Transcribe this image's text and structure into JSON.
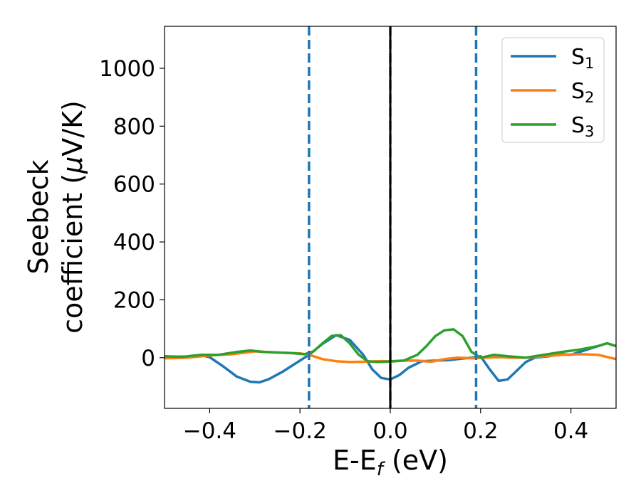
{
  "chart_data": {
    "type": "line",
    "title": "",
    "xlabel": {
      "main": "E-E",
      "sub": "f",
      "tail": " (eV)"
    },
    "ylabel": {
      "line1": "Seebeck",
      "line2": "coefficient  (",
      "mu": "μ",
      "unit": "V/K)"
    },
    "xlim": [
      -0.5,
      0.5
    ],
    "ylim": [
      -175,
      1145
    ],
    "x_ticks": [
      {
        "value": -0.4,
        "label": "−0.4"
      },
      {
        "value": -0.2,
        "label": "−0.2"
      },
      {
        "value": 0.0,
        "label": "0.0"
      },
      {
        "value": 0.2,
        "label": "0.2"
      },
      {
        "value": 0.4,
        "label": "0.4"
      }
    ],
    "y_ticks": [
      {
        "value": 0,
        "label": "0"
      },
      {
        "value": 200,
        "label": "200"
      },
      {
        "value": 400,
        "label": "400"
      },
      {
        "value": 600,
        "label": "600"
      },
      {
        "value": 800,
        "label": "800"
      },
      {
        "value": 1000,
        "label": "1000"
      }
    ],
    "legend_position": "top-right",
    "grid": false,
    "vertical_lines": [
      {
        "x": -0.18,
        "style": "dashed",
        "color": "#1f77b4"
      },
      {
        "x": 0.0,
        "style": "dashed",
        "color": "#1f77b4"
      },
      {
        "x": 0.19,
        "style": "dashed",
        "color": "#1f77b4"
      },
      {
        "x": 0.0,
        "style": "solid",
        "color": "#000000"
      }
    ],
    "series": [
      {
        "name": "S",
        "sub": "1",
        "color": "#1f77b4",
        "x": [
          -0.5,
          -0.45,
          -0.42,
          -0.4,
          -0.37,
          -0.34,
          -0.31,
          -0.29,
          -0.27,
          -0.24,
          -0.21,
          -0.18,
          -0.15,
          -0.12,
          -0.09,
          -0.06,
          -0.04,
          -0.02,
          0.0,
          0.02,
          0.04,
          0.07,
          0.1,
          0.13,
          0.16,
          0.18,
          0.2,
          0.22,
          0.24,
          0.26,
          0.28,
          0.3,
          0.32,
          0.35,
          0.38,
          0.4,
          0.43,
          0.46,
          0.48,
          0.5
        ],
        "y": [
          3,
          4,
          9,
          2,
          -30,
          -65,
          -83,
          -85,
          -75,
          -50,
          -20,
          10,
          48,
          78,
          62,
          10,
          -40,
          -70,
          -75,
          -60,
          -35,
          -12,
          -10,
          -8,
          -3,
          0,
          5,
          -40,
          -80,
          -75,
          -45,
          -15,
          0,
          5,
          12,
          10,
          25,
          40,
          50,
          40
        ]
      },
      {
        "name": "S",
        "sub": "2",
        "color": "#ff7f0e",
        "x": [
          -0.5,
          -0.45,
          -0.4,
          -0.35,
          -0.3,
          -0.25,
          -0.2,
          -0.18,
          -0.15,
          -0.12,
          -0.09,
          -0.06,
          -0.03,
          0.0,
          0.03,
          0.06,
          0.09,
          0.12,
          0.15,
          0.18,
          0.21,
          0.24,
          0.27,
          0.3,
          0.34,
          0.38,
          0.42,
          0.46,
          0.5
        ],
        "y": [
          -2,
          0,
          8,
          12,
          22,
          18,
          15,
          10,
          -5,
          -12,
          -15,
          -14,
          -12,
          -12,
          -10,
          -10,
          -14,
          -5,
          0,
          -2,
          0,
          2,
          0,
          0,
          5,
          10,
          12,
          10,
          -5
        ]
      },
      {
        "name": "S",
        "sub": "3",
        "color": "#2ca02c",
        "x": [
          -0.5,
          -0.46,
          -0.42,
          -0.38,
          -0.34,
          -0.31,
          -0.28,
          -0.25,
          -0.22,
          -0.19,
          -0.17,
          -0.15,
          -0.13,
          -0.11,
          -0.09,
          -0.07,
          -0.05,
          -0.03,
          0.0,
          0.03,
          0.06,
          0.08,
          0.1,
          0.12,
          0.14,
          0.16,
          0.18,
          0.2,
          0.23,
          0.26,
          0.3,
          0.34,
          0.38,
          0.42,
          0.46,
          0.48,
          0.5
        ],
        "y": [
          5,
          3,
          10,
          10,
          20,
          25,
          20,
          18,
          16,
          12,
          22,
          50,
          75,
          78,
          50,
          10,
          -12,
          -15,
          -13,
          -10,
          10,
          40,
          75,
          95,
          98,
          75,
          20,
          0,
          10,
          5,
          0,
          10,
          20,
          28,
          40,
          50,
          40
        ]
      }
    ]
  }
}
